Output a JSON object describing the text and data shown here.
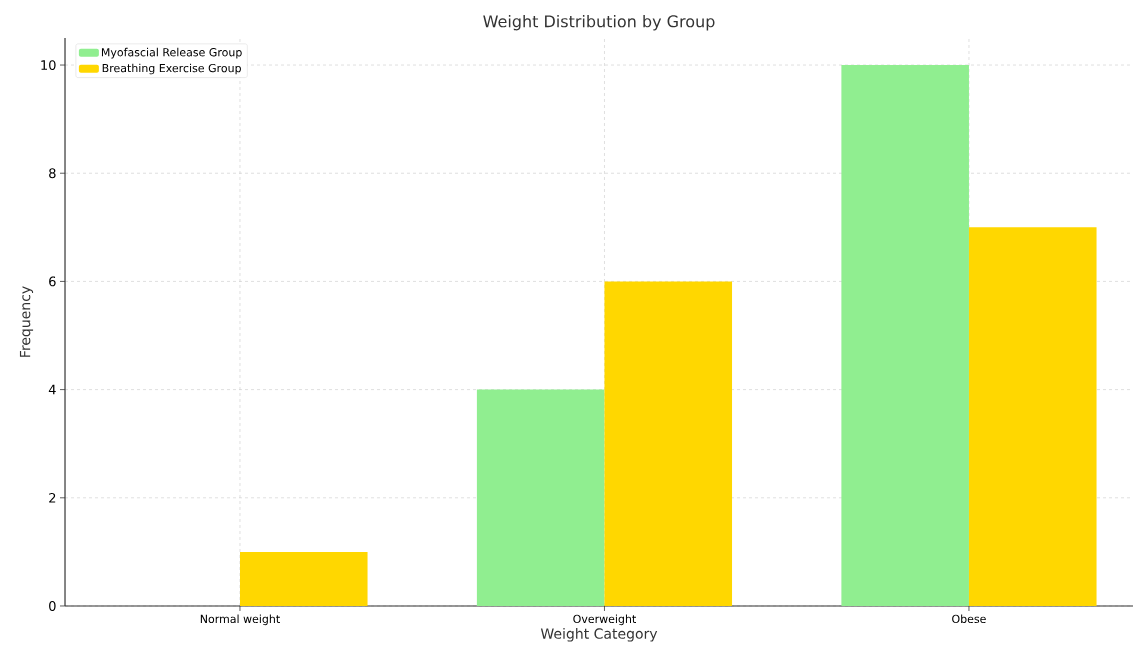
{
  "chart_data": {
    "type": "bar",
    "title": "Weight Distribution by Group",
    "xlabel": "Weight Category",
    "ylabel": "Frequency",
    "categories": [
      "Normal weight",
      "Overweight",
      "Obese"
    ],
    "series": [
      {
        "name": "Myofascial Release Group",
        "color": "#90ee90",
        "values": [
          0,
          4,
          10
        ]
      },
      {
        "name": "Breathing Exercise Group",
        "color": "#ffd700",
        "values": [
          1,
          6,
          7
        ]
      }
    ],
    "ylim": [
      0,
      10.5
    ],
    "yticks": [
      0,
      2,
      4,
      6,
      8,
      10
    ],
    "grid": true,
    "legend": "top left"
  }
}
